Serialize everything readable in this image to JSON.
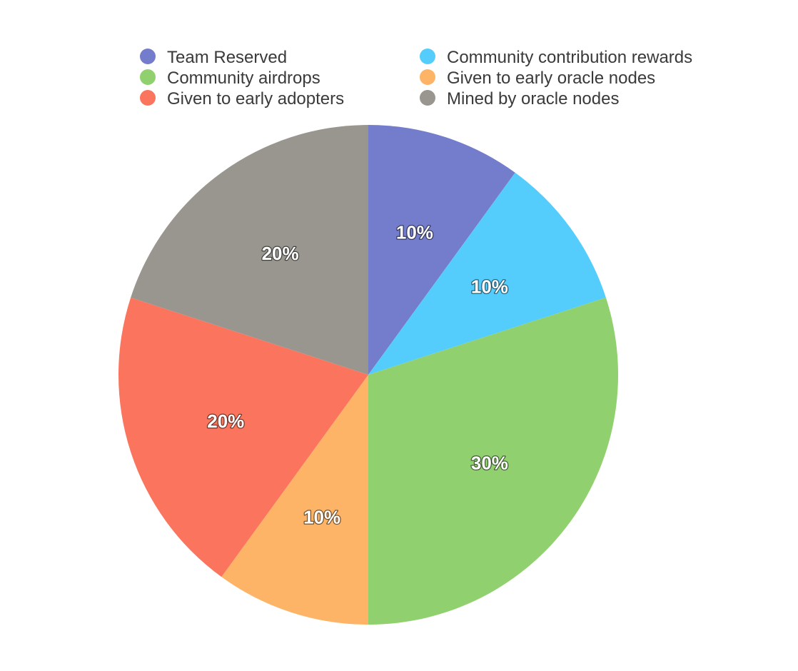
{
  "chart_data": {
    "type": "pie",
    "title": "",
    "legend_position": "top",
    "start_angle_deg": 0,
    "direction": "clockwise",
    "slices": [
      {
        "name": "Team Reserved",
        "value": 10,
        "label": "10%",
        "color": "#737dcb"
      },
      {
        "name": "Community contribution rewards",
        "value": 10,
        "label": "10%",
        "color": "#55cdfc"
      },
      {
        "name": "Community airdrops",
        "value": 30,
        "label": "30%",
        "color": "#90d06f"
      },
      {
        "name": "Given to early oracle nodes",
        "value": 10,
        "label": "10%",
        "color": "#fdb466"
      },
      {
        "name": "Given to early adopters",
        "value": 20,
        "label": "20%",
        "color": "#fb755e"
      },
      {
        "name": "Mined by oracle nodes",
        "value": 20,
        "label": "20%",
        "color": "#99958f"
      }
    ]
  }
}
